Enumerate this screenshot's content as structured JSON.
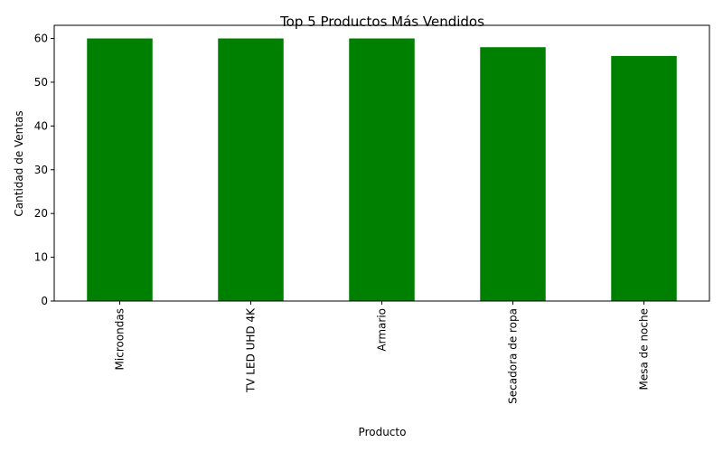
{
  "chart_data": {
    "type": "bar",
    "title": "Top 5 Productos Más Vendidos",
    "xlabel": "Producto",
    "ylabel": "Cantidad de Ventas",
    "categories": [
      "Microondas",
      "TV LED UHD 4K",
      "Armario",
      "Secadora de ropa",
      "Mesa de noche"
    ],
    "values": [
      60,
      60,
      60,
      58,
      56
    ],
    "ylim": [
      0,
      63
    ],
    "yticks": [
      0,
      10,
      20,
      30,
      40,
      50,
      60
    ],
    "x_tick_rotation": "vertical",
    "grid": false,
    "legend": "none",
    "bar_color": "#008000"
  }
}
